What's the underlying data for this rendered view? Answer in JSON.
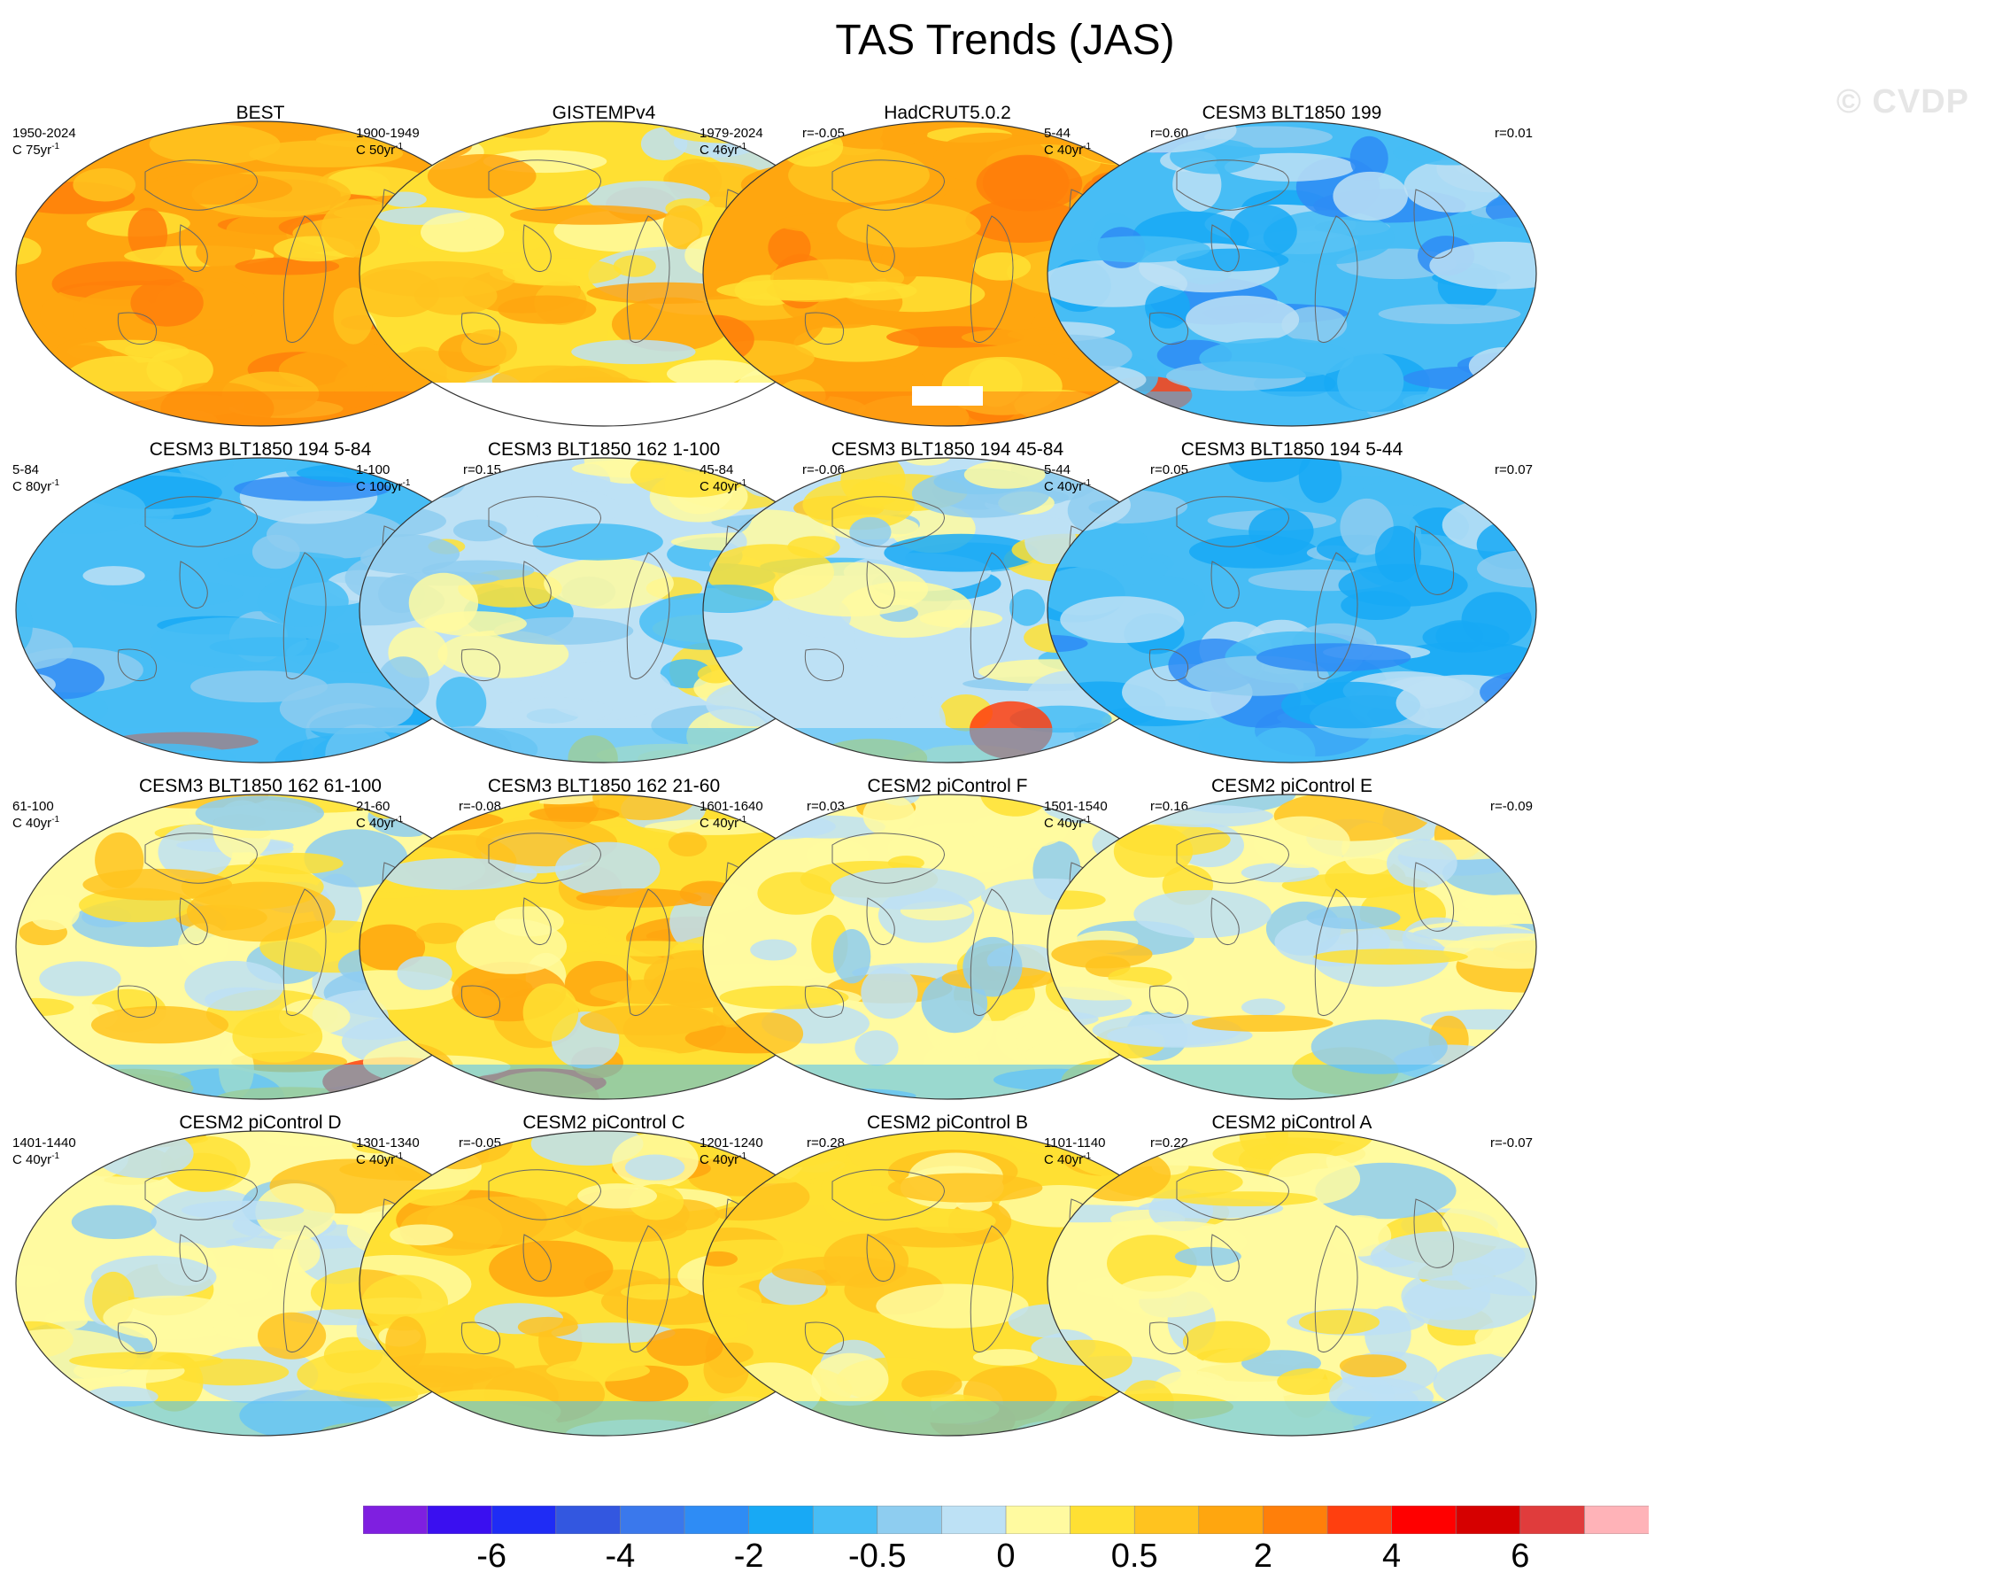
{
  "title": "TAS Trends (JAS)",
  "watermark": "© CVDP",
  "panels": [
    {
      "title": "BEST",
      "years": "1950-2024",
      "units": "C 75yr",
      "r": "",
      "scheme": "warm",
      "sat": 1.0,
      "seed": 1,
      "missing": ""
    },
    {
      "title": "GISTEMPv4",
      "years": "1900-1949",
      "units": "C 50yr",
      "r": "r=-0.05",
      "scheme": "mixwarm",
      "sat": 0.55,
      "seed": 2,
      "missing": "south"
    },
    {
      "title": "HadCRUT5.0.2",
      "years": "1979-2024",
      "units": "C 46yr",
      "r": "r=0.60",
      "scheme": "warm",
      "sat": 0.85,
      "seed": 3,
      "missing": "patch"
    },
    {
      "title": "CESM3 BLT1850 199",
      "years": "5-44",
      "units": "C 40yr",
      "r": "r=0.01",
      "scheme": "cool",
      "sat": 0.9,
      "seed": 4,
      "missing": ""
    },
    {
      "title": "CESM3 BLT1850 194 5-84",
      "years": "5-84",
      "units": "C 80yr",
      "r": "r=0.15",
      "scheme": "cool",
      "sat": 0.8,
      "seed": 5,
      "missing": ""
    },
    {
      "title": "CESM3 BLT1850 162 1-100",
      "years": "1-100",
      "units": "C 100yr",
      "r": "r=-0.06",
      "scheme": "mixcool",
      "sat": 0.6,
      "seed": 6,
      "missing": ""
    },
    {
      "title": "CESM3 BLT1850 194 45-84",
      "years": "45-84",
      "units": "C 40yr",
      "r": "r=0.05",
      "scheme": "mixcool",
      "sat": 0.75,
      "seed": 7,
      "missing": ""
    },
    {
      "title": "CESM3 BLT1850 194 5-44",
      "years": "5-44",
      "units": "C 40yr",
      "r": "r=0.07",
      "scheme": "cool",
      "sat": 0.95,
      "seed": 8,
      "missing": ""
    },
    {
      "title": "CESM3 BLT1850 162 61-100",
      "years": "61-100",
      "units": "C 40yr",
      "r": "r=-0.08",
      "scheme": "mix",
      "sat": 0.65,
      "seed": 9,
      "missing": ""
    },
    {
      "title": "CESM3 BLT1850 162 21-60",
      "years": "21-60",
      "units": "C 40yr",
      "r": "r=0.03",
      "scheme": "mixwarm",
      "sat": 0.7,
      "seed": 10,
      "missing": ""
    },
    {
      "title": "CESM2 piControl F",
      "years": "1601-1640",
      "units": "C 40yr",
      "r": "r=0.16",
      "scheme": "mix",
      "sat": 0.5,
      "seed": 11,
      "missing": ""
    },
    {
      "title": "CESM2 piControl E",
      "years": "1501-1540",
      "units": "C 40yr",
      "r": "r=-0.09",
      "scheme": "mix",
      "sat": 0.55,
      "seed": 12,
      "missing": ""
    },
    {
      "title": "CESM2 piControl D",
      "years": "1401-1440",
      "units": "C 40yr",
      "r": "r=-0.05",
      "scheme": "mix",
      "sat": 0.5,
      "seed": 13,
      "missing": ""
    },
    {
      "title": "CESM2 piControl C",
      "years": "1301-1340",
      "units": "C 40yr",
      "r": "r=0.28",
      "scheme": "mixwarm",
      "sat": 0.55,
      "seed": 14,
      "missing": ""
    },
    {
      "title": "CESM2 piControl B",
      "years": "1201-1240",
      "units": "C 40yr",
      "r": "r=0.22",
      "scheme": "mixwarm",
      "sat": 0.55,
      "seed": 15,
      "missing": ""
    },
    {
      "title": "CESM2 piControl A",
      "years": "1101-1140",
      "units": "C 40yr",
      "r": "r=-0.07",
      "scheme": "mix",
      "sat": 0.5,
      "seed": 16,
      "missing": ""
    }
  ],
  "colorbar": {
    "colors": [
      "#7f1fe0",
      "#3a0ff0",
      "#1f2cf5",
      "#3357e0",
      "#3a78ec",
      "#2e8cf5",
      "#18a9f5",
      "#47bdf5",
      "#8ecdf0",
      "#bde1f5",
      "#fffaa0",
      "#ffe033",
      "#ffc31f",
      "#ffa60f",
      "#ff7f0a",
      "#ff3f0f",
      "#ff0000",
      "#d60000",
      "#e03c3c",
      "#ffb3b8"
    ],
    "tick_labels": [
      "-6",
      "-4",
      "-2",
      "-0.5",
      "0",
      "0.5",
      "2",
      "4",
      "6"
    ]
  }
}
